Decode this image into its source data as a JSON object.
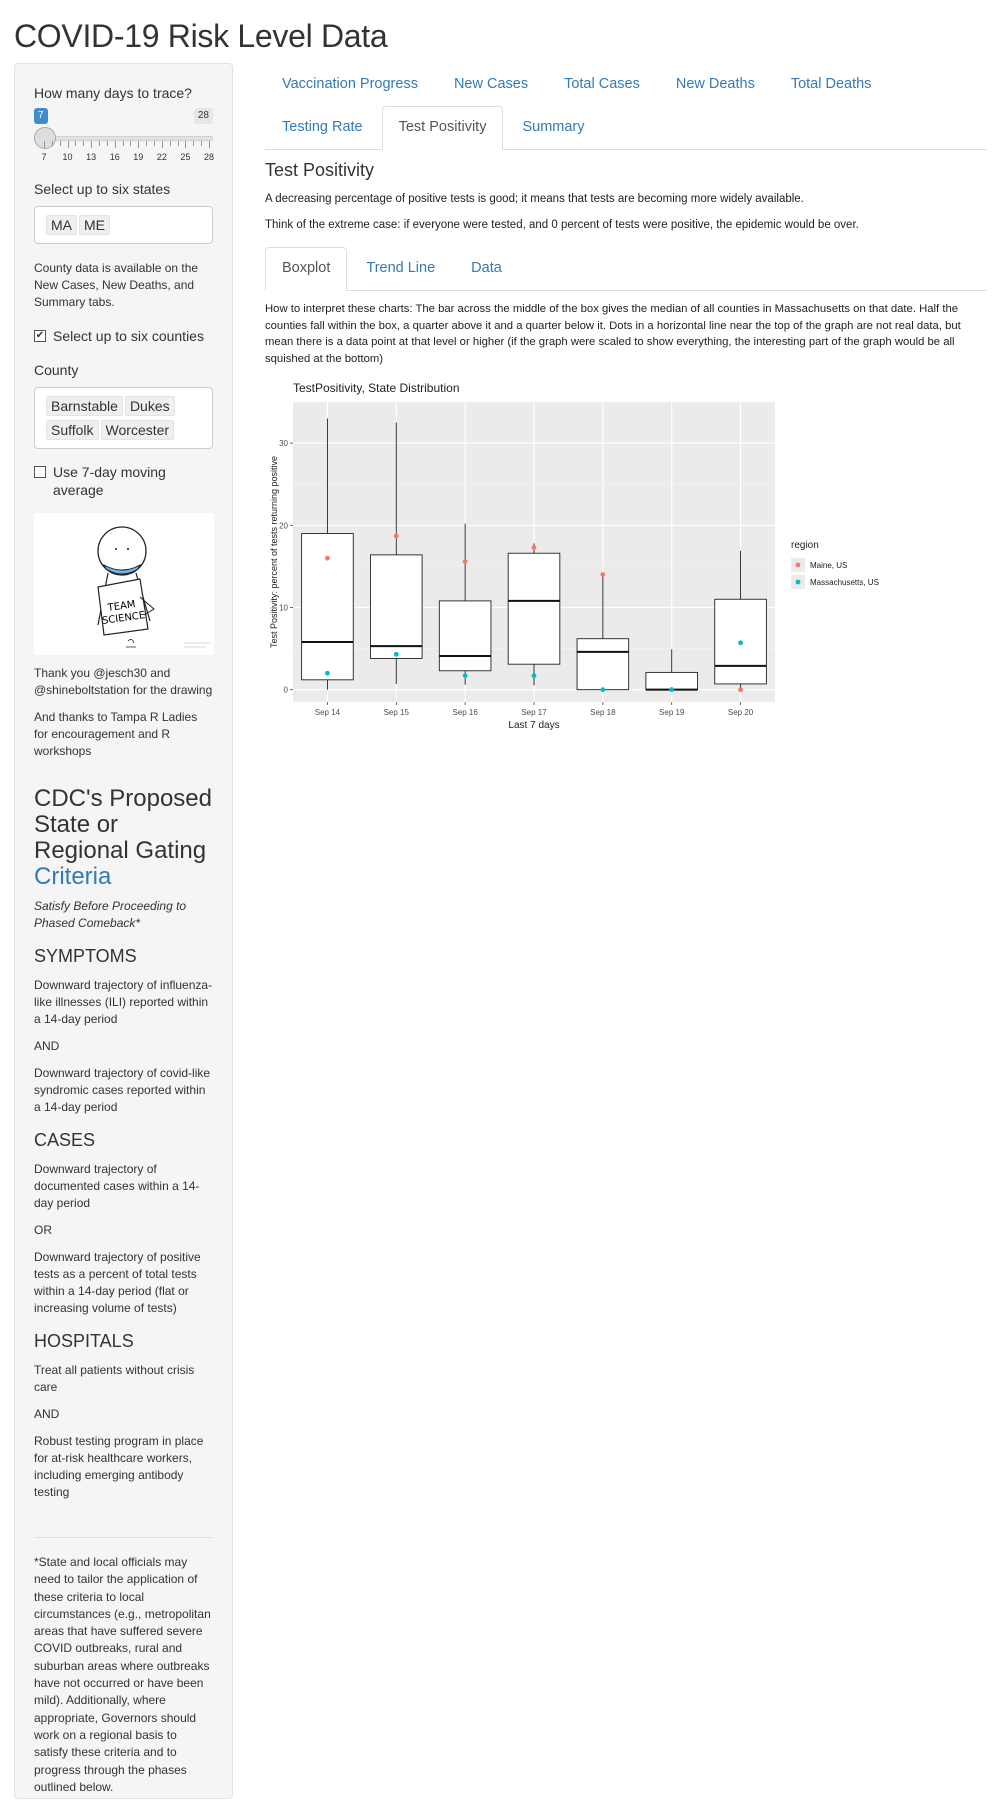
{
  "app": {
    "title": "COVID-19 Risk Level Data"
  },
  "sidebar": {
    "days_label": "How many days to trace?",
    "slider": {
      "min": 7,
      "max": 28,
      "value": 7,
      "tick_labels": [
        "7",
        "10",
        "13",
        "16",
        "19",
        "22",
        "25",
        "28"
      ]
    },
    "states_label": "Select up to six states",
    "states": [
      "MA",
      "ME"
    ],
    "county_note": "County data is available on the New Cases, New Deaths, and Summary tabs.",
    "select_counties": {
      "label": "Select up to six counties",
      "checked": true,
      "mark": "✔"
    },
    "county_label": "County",
    "counties": [
      "Barnstable",
      "Dukes",
      "Suffolk",
      "Worcester"
    ],
    "moving_avg": {
      "label": "Use 7-day moving average",
      "checked": false
    },
    "drawing_icon": "team-science-drawing",
    "drawing_text": [
      "TEAM",
      "SCIENCE"
    ],
    "thanks1": "Thank you @jesch30 and @shineboltstation for the drawing",
    "thanks2": "And thanks to Tampa R Ladies for encouragement and R workshops",
    "cdc_title": "CDC's Proposed State or Regional Gating",
    "cdc_link": "Criteria",
    "cdc_subtitle": "Satisfy Before Proceeding to Phased Comeback*",
    "symptoms_heading": "SYMPTOMS",
    "symptoms_1": "Downward trajectory of influenza-like illnesses (ILI) reported within a 14-day period",
    "and1": "AND",
    "symptoms_2": "Downward trajectory of covid-like syndromic cases reported within a 14-day period",
    "cases_heading": "CASES",
    "cases_1": "Downward trajectory of documented cases within a 14-day period",
    "or1": "OR",
    "cases_2": "Downward trajectory of positive tests as a percent of total tests within a 14-day period (flat or increasing volume of tests)",
    "hospitals_heading": "HOSPITALS",
    "hospitals_1": "Treat all patients without crisis care",
    "and2": "AND",
    "hospitals_2": "Robust testing program in place for at-risk healthcare workers, including emerging antibody testing",
    "footnote": "*State and local officials may need to tailor the application of these criteria to local circumstances (e.g., metropolitan areas that have suffered severe COVID outbreaks, rural and suburban areas where outbreaks have not occurred or have been mild). Additionally, where appropriate, Governors should work on a regional basis to satisfy these criteria and to progress through the phases outlined below."
  },
  "main": {
    "tabs": [
      "Vaccination Progress",
      "New Cases",
      "Total Cases",
      "New Deaths",
      "Total Deaths",
      "Testing Rate",
      "Test Positivity",
      "Summary"
    ],
    "active_tab": "Test Positivity",
    "section_title": "Test Positivity",
    "desc1": "A decreasing percentage of positive tests is good; it means that tests are becoming more widely available.",
    "desc2": "Think of the extreme case: if everyone were tested, and 0 percent of tests were positive, the epidemic would be over.",
    "subtabs": [
      "Boxplot",
      "Trend Line",
      "Data"
    ],
    "active_subtab": "Boxplot",
    "interpretation": "How to interpret these charts: The bar across the middle of the box gives the median of all counties in Massachusetts on that date. Half the counties fall within the box, a quarter above it and a quarter below it. Dots in a horizontal line near the top of the graph are not real data, but mean there is a data point at that level or higher (if the graph were scaled to show everything, the interesting part of the graph would be all squished at the bottom)"
  },
  "chart_data": {
    "type": "boxplot",
    "title": "TestPositivity, State Distribution",
    "xlabel": "Last 7 days",
    "ylabel": "Test Positivity: percent of tests returning positive",
    "ylim": [
      -1.5,
      35
    ],
    "yticks": [
      0,
      10,
      20,
      30
    ],
    "categories": [
      "Sep 14",
      "Sep 15",
      "Sep 16",
      "Sep 17",
      "Sep 18",
      "Sep 19",
      "Sep 20"
    ],
    "boxes": [
      {
        "min": 0.0,
        "q1": 1.2,
        "median": 5.8,
        "q3": 19.0,
        "max": 33.0
      },
      {
        "min": 0.7,
        "q1": 3.8,
        "median": 5.3,
        "q3": 16.4,
        "max": 32.5
      },
      {
        "min": 0.6,
        "q1": 2.3,
        "median": 4.1,
        "q3": 10.8,
        "max": 20.2
      },
      {
        "min": 0.5,
        "q1": 3.1,
        "median": 10.8,
        "q3": 16.6,
        "max": 17.8
      },
      {
        "min": 0.0,
        "q1": 0.0,
        "median": 4.6,
        "q3": 6.2,
        "max": 14.0
      },
      {
        "min": 0.0,
        "q1": 0.0,
        "median": 0.0,
        "q3": 2.1,
        "max": 4.9
      },
      {
        "min": 0.0,
        "q1": 0.7,
        "median": 2.9,
        "q3": 11.0,
        "max": 16.9
      }
    ],
    "series": [
      {
        "name": "Maine, US",
        "color": "#f8766d",
        "values": [
          16.0,
          18.7,
          15.6,
          17.3,
          14.0,
          0.0,
          0.0
        ]
      },
      {
        "name": "Massachusetts, US",
        "color": "#00bfc4",
        "values": [
          2.0,
          4.3,
          1.7,
          1.7,
          0.0,
          0.0,
          5.7
        ]
      }
    ],
    "legend": {
      "title": "region",
      "placement": "right"
    },
    "grid": true
  }
}
